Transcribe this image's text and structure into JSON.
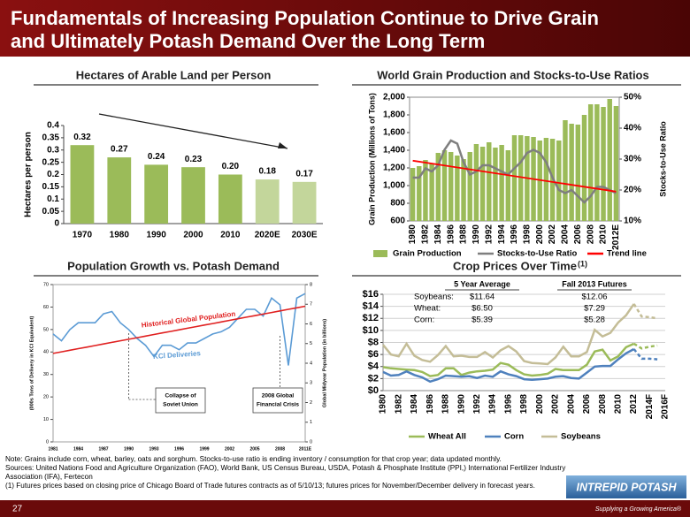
{
  "header": {
    "title_lines": [
      "Fundamentals of Increasing Population Continue to Drive Grain",
      "and Ultimately Potash Demand Over the Long Term"
    ]
  },
  "chart_data": [
    {
      "type": "bar",
      "title": "Hectares of Arable Land per Person",
      "ylabel": "Hectares per person",
      "categories": [
        "1970",
        "1980",
        "1990",
        "2000",
        "2010",
        "2020E",
        "2030E"
      ],
      "values": [
        0.32,
        0.27,
        0.24,
        0.23,
        0.2,
        0.18,
        0.17
      ],
      "value_labels": [
        "0.32",
        "0.27",
        "0.24",
        "0.23",
        "0.20",
        "0.18",
        "0.17"
      ],
      "colors": [
        "#9bbb59",
        "#9bbb59",
        "#9bbb59",
        "#9bbb59",
        "#9bbb59",
        "#c3d69b",
        "#c3d69b"
      ],
      "ylim": [
        0,
        0.4
      ],
      "yticks": [
        0,
        0.05,
        0.1,
        0.15,
        0.2,
        0.25,
        0.3,
        0.35,
        0.4
      ]
    },
    {
      "type": "bar_line",
      "title": "World Grain Production and Stocks-to-Use Ratios",
      "ylabel": "Grain Production (Millions of Tons)",
      "y2label": "Stocks-to-Use Ratio",
      "categories": [
        "1980",
        null,
        "1982",
        null,
        "1984",
        null,
        "1986",
        null,
        "1988",
        null,
        "1990",
        null,
        "1992",
        null,
        "1994",
        null,
        "1996",
        null,
        "1998",
        null,
        "2000",
        null,
        "2002",
        null,
        "2004",
        null,
        "2006",
        null,
        "2008",
        null,
        "2010",
        null,
        "2012E"
      ],
      "series": [
        {
          "name": "Grain Production",
          "color": "#9bbb59",
          "values": [
            1200,
            1220,
            1290,
            1250,
            1370,
            1400,
            1380,
            1340,
            1300,
            1380,
            1470,
            1440,
            1490,
            1430,
            1460,
            1400,
            1570,
            1570,
            1560,
            1550,
            1510,
            1540,
            1530,
            1510,
            1740,
            1700,
            1690,
            1800,
            1920,
            1920,
            1890,
            1980,
            1900
          ]
        },
        {
          "name": "Stocks-to-Use Ratio",
          "color": "#7f7f7f",
          "axis": "y2",
          "values": [
            24,
            24,
            27,
            26,
            28,
            33,
            36,
            35,
            29,
            25,
            26,
            28,
            28,
            27,
            26,
            25,
            27,
            29,
            32,
            33,
            32,
            29,
            24,
            20,
            19,
            20,
            18,
            16,
            18,
            21,
            21,
            20,
            19
          ]
        },
        {
          "name": "Trend line",
          "color": "#ff0000",
          "axis": "y2",
          "x": [
            "1980",
            "2012E"
          ],
          "values": [
            29.5,
            19.5
          ]
        }
      ],
      "ylim": [
        600,
        2000
      ],
      "yticks": [
        600,
        800,
        {
          "value": 1000,
          "label": "1,000"
        },
        {
          "value": 1200,
          "label": "1,200"
        },
        {
          "value": 1400,
          "label": "1,400"
        },
        {
          "value": 1600,
          "label": "1,600"
        },
        {
          "value": 1800,
          "label": "1,800"
        },
        {
          "value": 2000,
          "label": "2,000"
        }
      ],
      "y2lim": [
        10,
        50
      ],
      "y2ticks": [
        {
          "value": 10,
          "label": "10%"
        },
        {
          "value": 20,
          "label": "20%"
        },
        {
          "value": 30,
          "label": "30%"
        },
        {
          "value": 40,
          "label": "40%"
        },
        {
          "value": 50,
          "label": "50%"
        }
      ],
      "legend": "bottom"
    },
    {
      "type": "line",
      "title": "Population Growth vs. Potash Demand",
      "ylabel": "(000s Tons of Delivery in KCl Equivalent)",
      "y2label": "Global Midyear Population (in billions)",
      "categories": [
        "1981",
        null,
        null,
        "1984",
        null,
        null,
        "1987",
        null,
        null,
        "1990",
        null,
        null,
        "1993",
        null,
        null,
        "1996",
        null,
        null,
        "1999",
        null,
        null,
        "2002",
        null,
        null,
        "2005",
        null,
        null,
        "2008",
        null,
        null,
        "2011E"
      ],
      "series": [
        {
          "name": "KCl Deliveries",
          "color": "#5b9bd5",
          "values": [
            48,
            45,
            50,
            53,
            53,
            53,
            57,
            58,
            53,
            50,
            46,
            43,
            38,
            43,
            43,
            41,
            44,
            44,
            46,
            48,
            49,
            51,
            55,
            59,
            59,
            56,
            64,
            61,
            34,
            64,
            66
          ]
        },
        {
          "name": "Historical Global Population",
          "color": "#e02020",
          "axis": "y2",
          "values": [
            4.5,
            4.58,
            4.66,
            4.74,
            4.82,
            4.9,
            4.98,
            5.06,
            5.14,
            5.22,
            5.3,
            5.38,
            5.46,
            5.54,
            5.62,
            5.7,
            5.78,
            5.86,
            5.94,
            6.02,
            6.1,
            6.18,
            6.26,
            6.34,
            6.42,
            6.5,
            6.58,
            6.66,
            6.74,
            6.82,
            6.9
          ]
        }
      ],
      "ylim": [
        0,
        70
      ],
      "yticks": [
        0,
        10,
        20,
        30,
        40,
        50,
        60,
        70
      ],
      "y2lim": [
        0,
        8
      ],
      "y2ticks": [
        0,
        1,
        2,
        3,
        4,
        5,
        6,
        7,
        8
      ],
      "annotations": [
        [
          "Collapse of",
          "Soviet Union"
        ],
        [
          "2008 Global",
          "Financial Crisis"
        ]
      ]
    },
    {
      "type": "line",
      "title": "Crop Prices Over Time",
      "title_note": "(1)",
      "categories": [
        "1980",
        null,
        "1982",
        null,
        "1984",
        null,
        "1986",
        null,
        "1988",
        null,
        "1990",
        null,
        "1992",
        null,
        "1994",
        null,
        "1996",
        null,
        "1998",
        null,
        "2000",
        null,
        "2002",
        null,
        "2004",
        null,
        "2006",
        null,
        "2008",
        null,
        "2010",
        null,
        "2012",
        null,
        "2014F",
        null,
        "2016F"
      ],
      "series": [
        {
          "name": "Wheat All",
          "color": "#9bbb59",
          "values": [
            3.9,
            3.7,
            3.6,
            3.5,
            3.4,
            3.1,
            2.4,
            2.6,
            3.7,
            3.7,
            2.6,
            3.0,
            3.2,
            3.3,
            3.5,
            4.6,
            4.3,
            3.4,
            2.7,
            2.5,
            2.6,
            2.8,
            3.6,
            3.4,
            3.4,
            3.4,
            4.3,
            6.5,
            6.8,
            5.0,
            5.7,
            7.2,
            7.8,
            7.0,
            7.3,
            7.5,
            null
          ]
        },
        {
          "name": "Corn",
          "color": "#4f81bd",
          "values": [
            3.1,
            2.5,
            2.6,
            3.2,
            2.6,
            2.2,
            1.5,
            1.9,
            2.5,
            2.4,
            2.3,
            2.4,
            2.1,
            2.5,
            2.3,
            3.2,
            2.7,
            2.4,
            1.9,
            1.8,
            1.9,
            2.0,
            2.3,
            2.4,
            2.1,
            2.0,
            3.0,
            4.0,
            4.1,
            4.1,
            5.2,
            6.2,
            6.9,
            5.3,
            5.3,
            5.2,
            null
          ]
        },
        {
          "name": "Soybeans",
          "color": "#c4bd97",
          "values": [
            7.6,
            6.0,
            5.7,
            7.8,
            5.8,
            5.1,
            4.8,
            5.9,
            7.4,
            5.7,
            5.8,
            5.6,
            5.6,
            6.4,
            5.5,
            6.7,
            7.4,
            6.5,
            4.9,
            4.6,
            4.5,
            4.4,
            5.5,
            7.3,
            5.7,
            5.7,
            6.4,
            10.1,
            9.0,
            9.6,
            11.3,
            12.5,
            14.4,
            12.3,
            12.2,
            12.0,
            null
          ]
        }
      ],
      "dashed_from": "2012",
      "ylim": [
        0,
        16
      ],
      "yticks": [
        {
          "value": 0,
          "label": "$0"
        },
        {
          "value": 2,
          "label": "$2"
        },
        {
          "value": 4,
          "label": "$4"
        },
        {
          "value": 6,
          "label": "$6"
        },
        {
          "value": 8,
          "label": "$8"
        },
        {
          "value": 10,
          "label": "$10"
        },
        {
          "value": 12,
          "label": "$12"
        },
        {
          "value": 14,
          "label": "$14"
        },
        {
          "value": 16,
          "label": "$16"
        }
      ],
      "grid": true,
      "legend": "bottom",
      "table": {
        "header": [
          "5 Year Average",
          "Fall 2013  Futures"
        ],
        "rows": [
          [
            "Soybeans:",
            "$11.64",
            "$12.06"
          ],
          [
            "Wheat:",
            "$6.50",
            "$7.29"
          ],
          [
            "Corn:",
            "$5.39",
            "$5.28"
          ]
        ]
      }
    }
  ],
  "notes": {
    "note": "Note: Grains include corn, wheat, barley, oats and sorghum. Stocks-to-use ratio is ending inventory / consumption for that crop year; data updated monthly.",
    "sources": "Sources: United Nations Food and Agriculture Organization (FAO), World Bank, US Census Bureau, USDA, Potash & Phosphate Institute (PPI,) International Fertilizer Industry Association (IFA), Fertecon",
    "footnote": "(1) Futures prices based on closing price of Chicago Board of Trade futures contracts as of 5/10/13; futures prices for November/December delivery in forecast years."
  },
  "footer": {
    "page": "27",
    "logo": "INTREPID POTASH",
    "tagline": "Supplying a Growing America®"
  }
}
